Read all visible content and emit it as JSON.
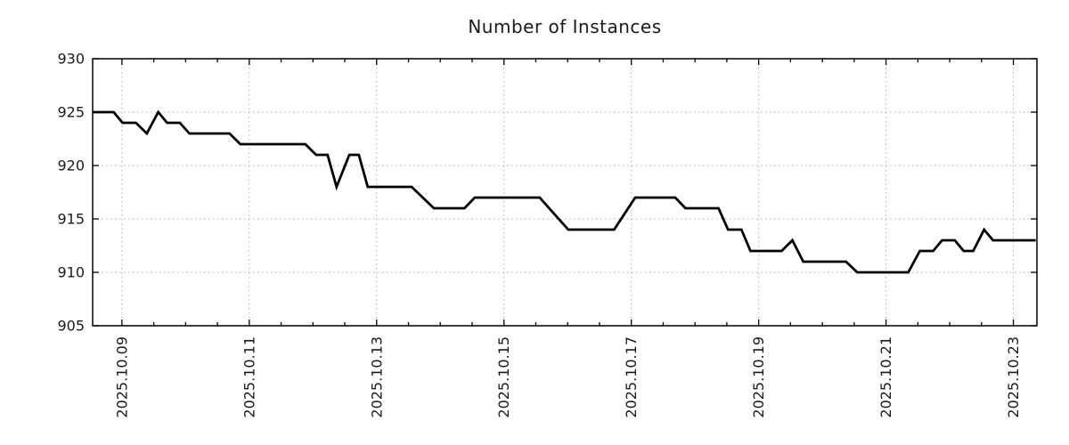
{
  "chart_data": {
    "type": "line",
    "title": "Number of Instances",
    "xlabel": "",
    "ylabel": "",
    "legend": "none",
    "grid": "dotted",
    "x_axis": {
      "unit": "date",
      "tick_labels": [
        "2025.10.09",
        "2025.10.11",
        "2025.10.13",
        "2025.10.15",
        "2025.10.17",
        "2025.10.19",
        "2025.10.21",
        "2025.10.23"
      ],
      "tick_days": [
        9,
        11,
        13,
        15,
        17,
        19,
        21,
        23
      ],
      "minor_tick_step_days": 0.5,
      "xlim_days": [
        8.54,
        23.37
      ]
    },
    "y_axis": {
      "tick_labels": [
        "905",
        "910",
        "915",
        "920",
        "925",
        "930"
      ],
      "ticks": [
        905,
        910,
        915,
        920,
        925,
        930
      ],
      "ylim": [
        905,
        930
      ]
    },
    "series": [
      {
        "name": "instances",
        "color": "#000000",
        "points": [
          [
            8.54,
            925
          ],
          [
            8.87,
            925
          ],
          [
            9.01,
            924
          ],
          [
            9.22,
            924
          ],
          [
            9.39,
            923
          ],
          [
            9.57,
            925
          ],
          [
            9.71,
            924
          ],
          [
            9.91,
            924
          ],
          [
            10.06,
            923
          ],
          [
            10.69,
            923
          ],
          [
            10.86,
            922
          ],
          [
            11.88,
            922
          ],
          [
            12.05,
            921
          ],
          [
            12.23,
            921
          ],
          [
            12.37,
            918
          ],
          [
            12.57,
            921
          ],
          [
            12.72,
            921
          ],
          [
            12.86,
            918
          ],
          [
            13.55,
            918
          ],
          [
            13.9,
            916
          ],
          [
            14.38,
            916
          ],
          [
            14.54,
            917
          ],
          [
            15.56,
            917
          ],
          [
            16.01,
            914
          ],
          [
            16.73,
            914
          ],
          [
            17.06,
            917
          ],
          [
            17.69,
            917
          ],
          [
            17.85,
            916
          ],
          [
            18.37,
            916
          ],
          [
            18.52,
            914
          ],
          [
            18.73,
            914
          ],
          [
            18.87,
            912
          ],
          [
            19.36,
            912
          ],
          [
            19.53,
            913
          ],
          [
            19.7,
            911
          ],
          [
            20.37,
            911
          ],
          [
            20.55,
            910
          ],
          [
            21.35,
            910
          ],
          [
            21.53,
            912
          ],
          [
            21.74,
            912
          ],
          [
            21.88,
            913
          ],
          [
            22.08,
            913
          ],
          [
            22.22,
            912
          ],
          [
            22.37,
            912
          ],
          [
            22.54,
            914
          ],
          [
            22.68,
            913
          ],
          [
            23.35,
            913
          ]
        ]
      }
    ],
    "colors": {
      "line": "#000000",
      "grid": "#b0b0b0",
      "border": "#000000",
      "text": "#1a1a1a",
      "background": "#ffffff"
    }
  }
}
